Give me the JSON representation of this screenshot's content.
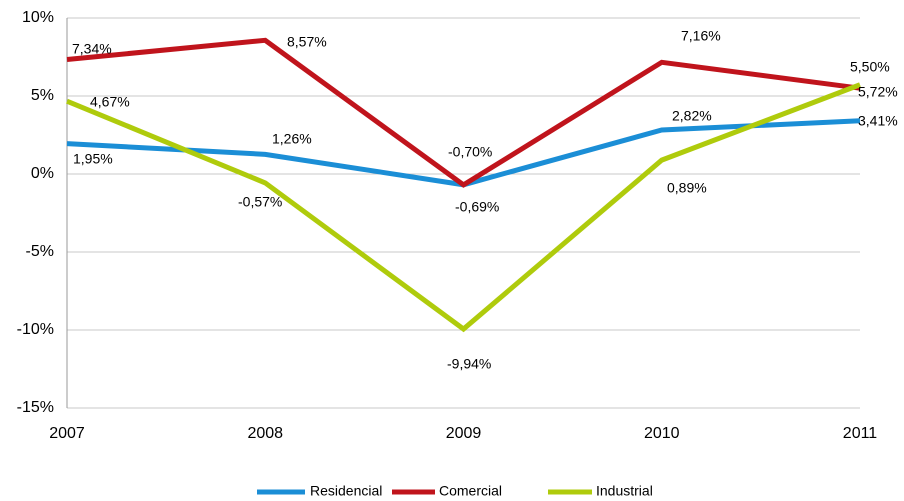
{
  "chart_data": {
    "type": "line",
    "categories": [
      "2007",
      "2008",
      "2009",
      "2010",
      "2011"
    ],
    "series": [
      {
        "name": "Residencial",
        "color": "#1b8ed6",
        "values": [
          1.95,
          1.26,
          -0.69,
          2.82,
          3.41
        ],
        "value_labels": [
          "1,95%",
          "1,26%",
          "-0,69%",
          "2,82%",
          "3,41%"
        ]
      },
      {
        "name": "Comercial",
        "color": "#c0141c",
        "values": [
          7.34,
          8.57,
          -0.7,
          7.16,
          5.5
        ],
        "value_labels": [
          "7,34%",
          "8,57%",
          "-0,70%",
          "7,16%",
          "5,50%"
        ]
      },
      {
        "name": "Industrial",
        "color": "#afcb0c",
        "values": [
          4.67,
          -0.57,
          -9.94,
          0.89,
          5.72
        ],
        "value_labels": [
          "4,67%",
          "-0,57%",
          "-9,94%",
          "0,89%",
          "5,72%"
        ]
      }
    ],
    "ylim": [
      -15,
      10
    ],
    "yticks": [
      {
        "value": -15,
        "label": "-15%"
      },
      {
        "value": -10,
        "label": "-10%"
      },
      {
        "value": -5,
        "label": "-5%"
      },
      {
        "value": 0,
        "label": "0%"
      },
      {
        "value": 5,
        "label": "5%"
      },
      {
        "value": 10,
        "label": "10%"
      }
    ],
    "grid": true,
    "legend": "bottom"
  }
}
